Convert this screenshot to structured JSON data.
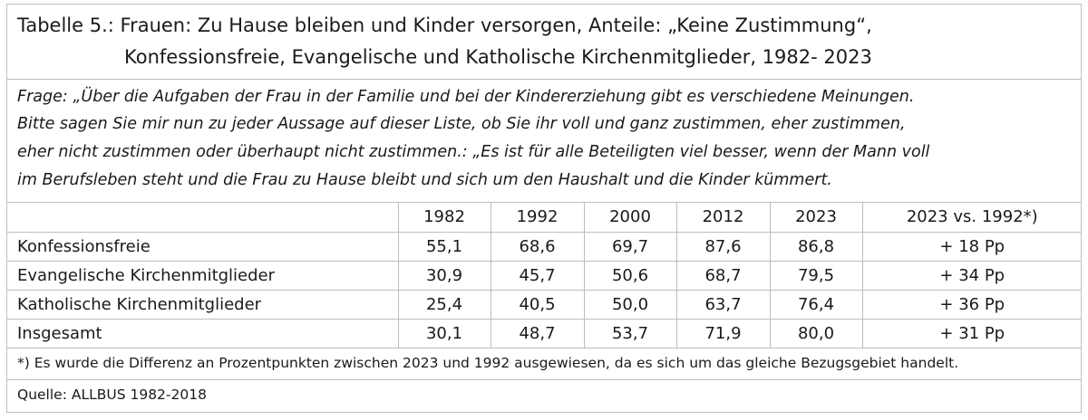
{
  "title": {
    "line1": "Tabelle 5.: Frauen: Zu Hause bleiben und Kinder versorgen, Anteile: „Keine Zustimmung“,",
    "line2": "Konfessionsfreie, Evangelische und Katholische Kirchenmitglieder, 1982- 2023"
  },
  "question": {
    "lines": [
      "Frage: „Über die Aufgaben der Frau in der Familie und bei der Kindererziehung gibt es verschiedene Meinungen.",
      "Bitte sagen Sie mir nun zu jeder Aussage auf dieser Liste, ob Sie ihr voll und ganz zustimmen, eher zustimmen,",
      "eher nicht zustimmen oder überhaupt nicht zustimmen.: „Es ist für alle Beteiligten viel besser, wenn der Mann voll",
      "im Berufsleben steht und die Frau zu Hause bleibt und sich um den Haushalt und die Kinder kümmert."
    ]
  },
  "table": {
    "headers": [
      "",
      "1982",
      "1992",
      "2000",
      "2012",
      "2023",
      "2023 vs. 1992*)"
    ],
    "rows": [
      [
        "Konfessionsfreie",
        "55,1",
        "68,6",
        "69,7",
        "87,6",
        "86,8",
        "+ 18 Pp"
      ],
      [
        "Evangelische Kirchenmitglieder",
        "30,9",
        "45,7",
        "50,6",
        "68,7",
        "79,5",
        "+ 34 Pp"
      ],
      [
        "Katholische Kirchenmitglieder",
        "25,4",
        "40,5",
        "50,0",
        "63,7",
        "76,4",
        "+ 36 Pp"
      ],
      [
        "Insgesamt",
        "30,1",
        "48,7",
        "53,7",
        "71,9",
        "80,0",
        "+ 31 Pp"
      ]
    ]
  },
  "footnote": "*) Es wurde die Differenz an Prozentpunkten zwischen 2023 und 1992 ausgewiesen, da es sich um das gleiche Bezugsgebiet handelt.",
  "source": "Quelle: ALLBUS 1982-2018"
}
